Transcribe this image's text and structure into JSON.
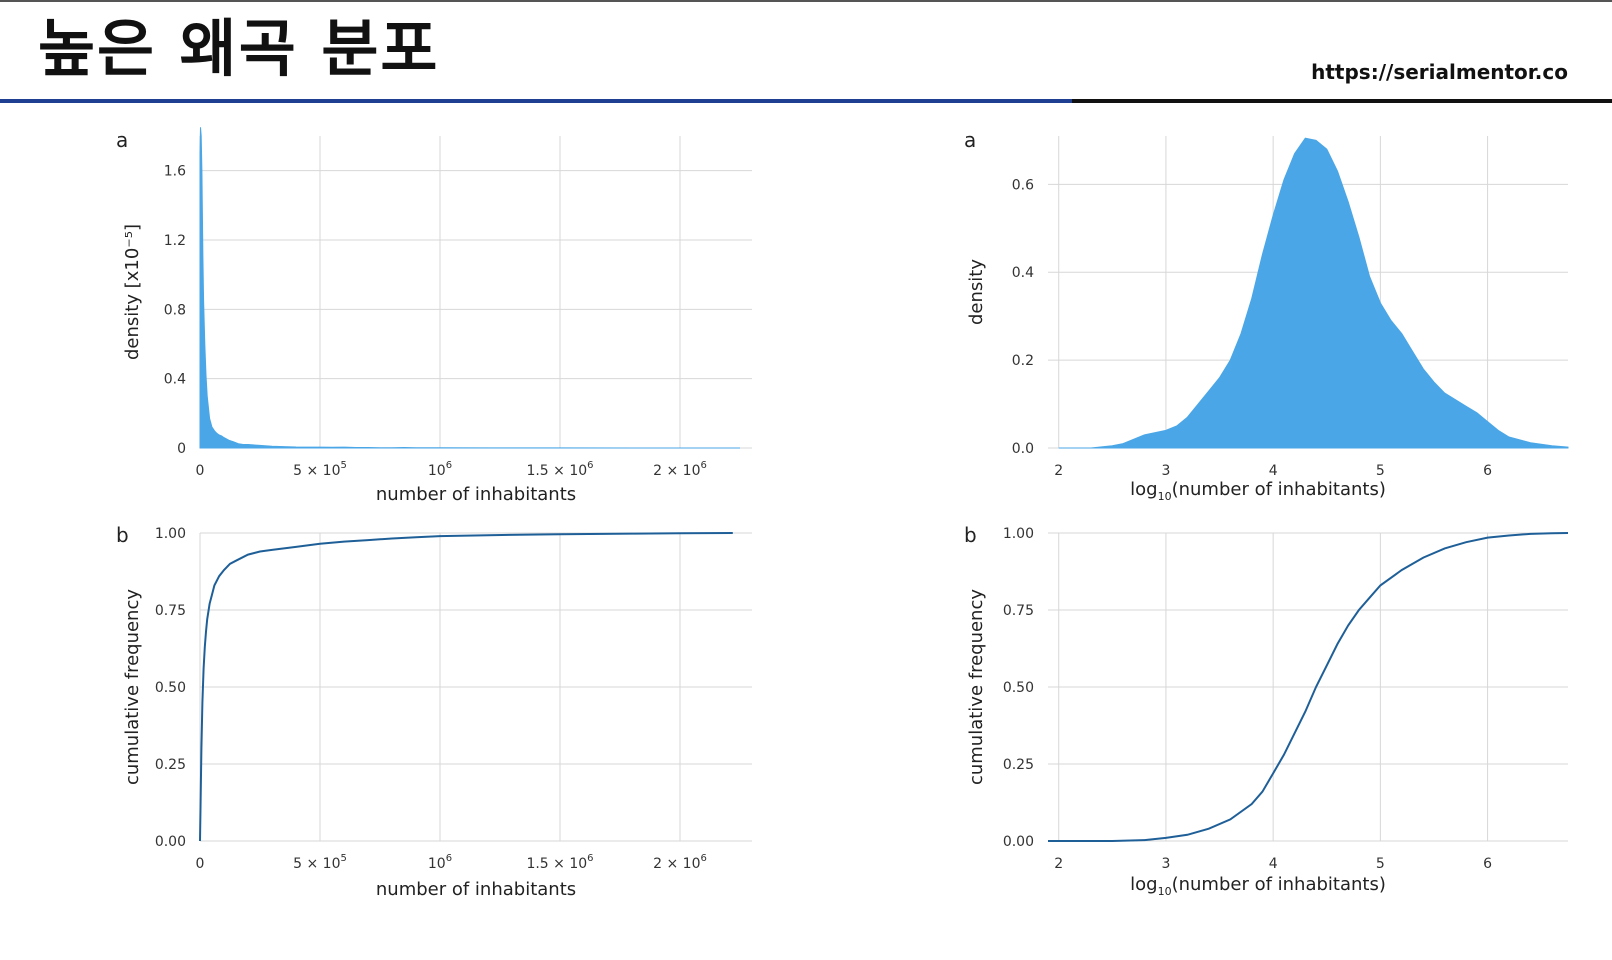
{
  "slide": {
    "title": "높은 왜곡 분포",
    "url": "https://serialmentor.co"
  },
  "chart_data": [
    {
      "id": "linear-density",
      "panel_tag": "a",
      "type": "area",
      "xlabel": "number of inhabitants",
      "ylabel": "density [x10⁻⁵]",
      "xlim": [
        0,
        2300000
      ],
      "ylim": [
        0,
        1.8
      ],
      "x_ticks": [
        {
          "value": 0,
          "base": "0",
          "exp": ""
        },
        {
          "value": 500000,
          "base": "5 × 10",
          "exp": "5"
        },
        {
          "value": 1000000,
          "base": "10",
          "exp": "6"
        },
        {
          "value": 1500000,
          "base": "1.5 × 10",
          "exp": "6"
        },
        {
          "value": 2000000,
          "base": "2 × 10",
          "exp": "6"
        }
      ],
      "y_ticks": [
        {
          "value": 0,
          "label": "0"
        },
        {
          "value": 0.4,
          "label": "0.4"
        },
        {
          "value": 0.8,
          "label": "0.8"
        },
        {
          "value": 1.2,
          "label": "1.2"
        },
        {
          "value": 1.6,
          "label": "1.6"
        }
      ],
      "color": "#4aa6e6",
      "x": [
        0,
        2000,
        5000,
        8000,
        10000,
        12000,
        15000,
        20000,
        25000,
        30000,
        40000,
        50000,
        60000,
        70000,
        80000,
        90000,
        100000,
        120000,
        140000,
        160000,
        180000,
        200000,
        250000,
        300000,
        350000,
        400000,
        450000,
        500000,
        550000,
        600000,
        650000,
        700000,
        750000,
        800000,
        850000,
        900000,
        950000,
        1000000,
        1200000,
        1500000,
        2000000,
        2250000
      ],
      "y": [
        1.7,
        1.85,
        1.8,
        1.6,
        1.35,
        1.1,
        0.85,
        0.6,
        0.42,
        0.3,
        0.17,
        0.12,
        0.1,
        0.085,
        0.075,
        0.07,
        0.06,
        0.045,
        0.035,
        0.025,
        0.02,
        0.02,
        0.015,
        0.01,
        0.008,
        0.006,
        0.005,
        0.005,
        0.004,
        0.005,
        0.003,
        0.003,
        0.002,
        0.002,
        0.003,
        0.002,
        0.001,
        0.001,
        0.0005,
        0.0003,
        0.0002,
        0.0001
      ]
    },
    {
      "id": "log-density",
      "panel_tag": "a",
      "type": "area",
      "xlabel": "log10(number of inhabitants)",
      "ylabel": "density",
      "xlim": [
        1.9,
        6.75
      ],
      "ylim": [
        0,
        0.71
      ],
      "x_ticks": [
        {
          "value": 2,
          "label": "2"
        },
        {
          "value": 3,
          "label": "3"
        },
        {
          "value": 4,
          "label": "4"
        },
        {
          "value": 5,
          "label": "5"
        },
        {
          "value": 6,
          "label": "6"
        }
      ],
      "y_ticks": [
        {
          "value": 0,
          "label": "0.0"
        },
        {
          "value": 0.2,
          "label": "0.2"
        },
        {
          "value": 0.4,
          "label": "0.4"
        },
        {
          "value": 0.6,
          "label": "0.6"
        }
      ],
      "color": "#4aa6e6",
      "x": [
        2.0,
        2.3,
        2.5,
        2.6,
        2.7,
        2.8,
        2.9,
        3.0,
        3.1,
        3.2,
        3.3,
        3.4,
        3.5,
        3.6,
        3.7,
        3.8,
        3.9,
        4.0,
        4.1,
        4.2,
        4.3,
        4.4,
        4.5,
        4.6,
        4.7,
        4.8,
        4.9,
        5.0,
        5.1,
        5.2,
        5.3,
        5.4,
        5.5,
        5.6,
        5.7,
        5.8,
        5.9,
        6.0,
        6.1,
        6.2,
        6.4,
        6.6,
        6.75
      ],
      "y": [
        0.0,
        0.0,
        0.005,
        0.01,
        0.02,
        0.03,
        0.035,
        0.04,
        0.05,
        0.07,
        0.1,
        0.13,
        0.16,
        0.2,
        0.26,
        0.34,
        0.44,
        0.53,
        0.61,
        0.67,
        0.705,
        0.7,
        0.68,
        0.63,
        0.56,
        0.48,
        0.39,
        0.33,
        0.29,
        0.26,
        0.22,
        0.18,
        0.15,
        0.125,
        0.11,
        0.095,
        0.08,
        0.06,
        0.04,
        0.025,
        0.012,
        0.005,
        0.002
      ]
    },
    {
      "id": "linear-cdf",
      "panel_tag": "b",
      "type": "line",
      "xlabel": "number of inhabitants",
      "ylabel": "cumulative frequency",
      "xlim": [
        0,
        2300000
      ],
      "ylim": [
        0,
        1.0
      ],
      "x_ticks": [
        {
          "value": 0,
          "base": "0",
          "exp": ""
        },
        {
          "value": 500000,
          "base": "5 × 10",
          "exp": "5"
        },
        {
          "value": 1000000,
          "base": "10",
          "exp": "6"
        },
        {
          "value": 1500000,
          "base": "1.5 × 10",
          "exp": "6"
        },
        {
          "value": 2000000,
          "base": "2 × 10",
          "exp": "6"
        }
      ],
      "y_ticks": [
        {
          "value": 0,
          "label": "0.00"
        },
        {
          "value": 0.25,
          "label": "0.25"
        },
        {
          "value": 0.5,
          "label": "0.50"
        },
        {
          "value": 0.75,
          "label": "0.75"
        },
        {
          "value": 1.0,
          "label": "1.00"
        }
      ],
      "color": "#1f5f98",
      "x": [
        0,
        3000,
        6000,
        10000,
        15000,
        20000,
        25000,
        30000,
        40000,
        50000,
        60000,
        80000,
        100000,
        125000,
        150000,
        200000,
        250000,
        300000,
        400000,
        500000,
        600000,
        700000,
        800000,
        900000,
        1000000,
        1200000,
        1500000,
        1800000,
        2000000,
        2220000
      ],
      "y": [
        0,
        0.15,
        0.3,
        0.45,
        0.56,
        0.63,
        0.68,
        0.72,
        0.77,
        0.8,
        0.83,
        0.86,
        0.88,
        0.9,
        0.91,
        0.93,
        0.94,
        0.945,
        0.955,
        0.965,
        0.972,
        0.977,
        0.982,
        0.986,
        0.99,
        0.993,
        0.996,
        0.998,
        0.999,
        1.0
      ]
    },
    {
      "id": "log-cdf",
      "panel_tag": "b",
      "type": "line",
      "xlabel": "log10(number of inhabitants)",
      "ylabel": "cumulative frequency",
      "xlim": [
        1.9,
        6.75
      ],
      "ylim": [
        0,
        1.0
      ],
      "x_ticks": [
        {
          "value": 2,
          "label": "2"
        },
        {
          "value": 3,
          "label": "3"
        },
        {
          "value": 4,
          "label": "4"
        },
        {
          "value": 5,
          "label": "5"
        },
        {
          "value": 6,
          "label": "6"
        }
      ],
      "y_ticks": [
        {
          "value": 0,
          "label": "0.00"
        },
        {
          "value": 0.25,
          "label": "0.25"
        },
        {
          "value": 0.5,
          "label": "0.50"
        },
        {
          "value": 0.75,
          "label": "0.75"
        },
        {
          "value": 1.0,
          "label": "1.00"
        }
      ],
      "color": "#1f5f98",
      "x": [
        1.9,
        2.5,
        2.8,
        3.0,
        3.2,
        3.4,
        3.6,
        3.8,
        3.9,
        4.0,
        4.1,
        4.2,
        4.3,
        4.4,
        4.5,
        4.6,
        4.7,
        4.8,
        4.9,
        5.0,
        5.2,
        5.4,
        5.6,
        5.8,
        6.0,
        6.2,
        6.4,
        6.6,
        6.75
      ],
      "y": [
        0,
        0.0,
        0.003,
        0.01,
        0.02,
        0.04,
        0.07,
        0.12,
        0.16,
        0.22,
        0.28,
        0.35,
        0.42,
        0.5,
        0.57,
        0.64,
        0.7,
        0.75,
        0.79,
        0.83,
        0.88,
        0.92,
        0.95,
        0.97,
        0.985,
        0.992,
        0.997,
        0.999,
        1.0
      ]
    }
  ]
}
